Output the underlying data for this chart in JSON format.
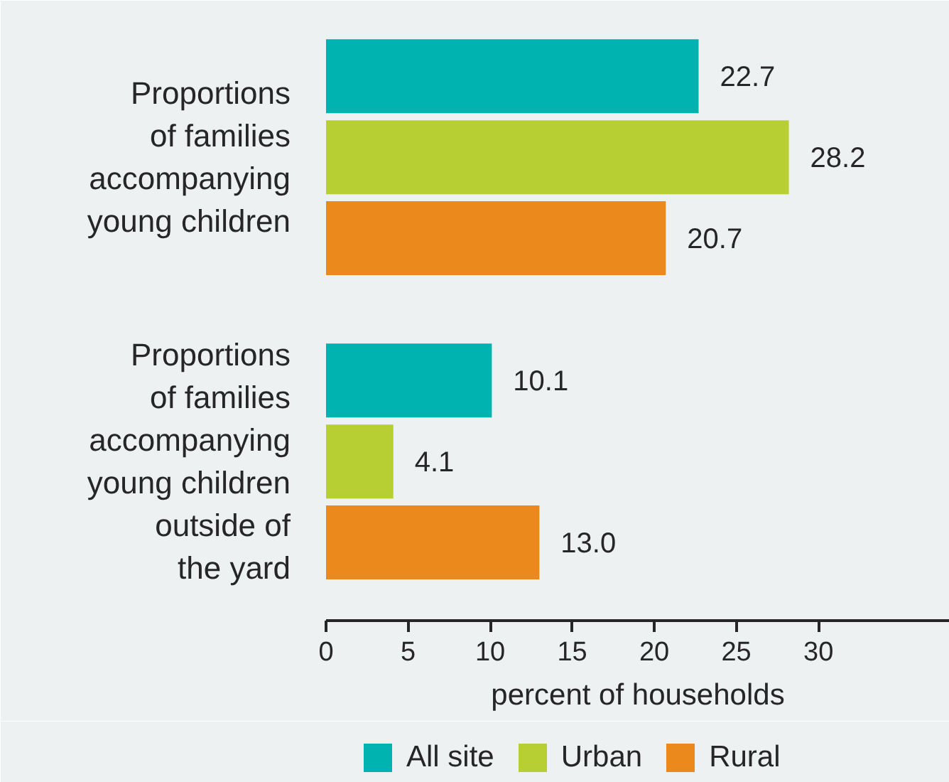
{
  "chart_data": {
    "type": "bar",
    "orientation": "horizontal",
    "categories": [
      "Proportions\nof families\naccompanying\nyoung children",
      "Proportions\nof families\naccompanying\nyoung children\noutside of\nthe yard"
    ],
    "series": [
      {
        "name": "All site",
        "color": "#00b2b0",
        "values": [
          22.7,
          10.1
        ],
        "value_labels": [
          "22.7",
          "10.1"
        ]
      },
      {
        "name": "Urban",
        "color": "#b8cf33",
        "values": [
          28.2,
          4.1
        ],
        "value_labels": [
          "28.2",
          "4.1"
        ]
      },
      {
        "name": "Rural",
        "color": "#ec891d",
        "values": [
          20.7,
          13.0
        ],
        "value_labels": [
          "20.7",
          "13.0"
        ]
      }
    ],
    "xlabel": "percent of households",
    "xlim": [
      0,
      38
    ],
    "xticks": [
      0,
      5,
      10,
      15,
      20,
      25,
      30
    ],
    "legend": "bottom"
  }
}
